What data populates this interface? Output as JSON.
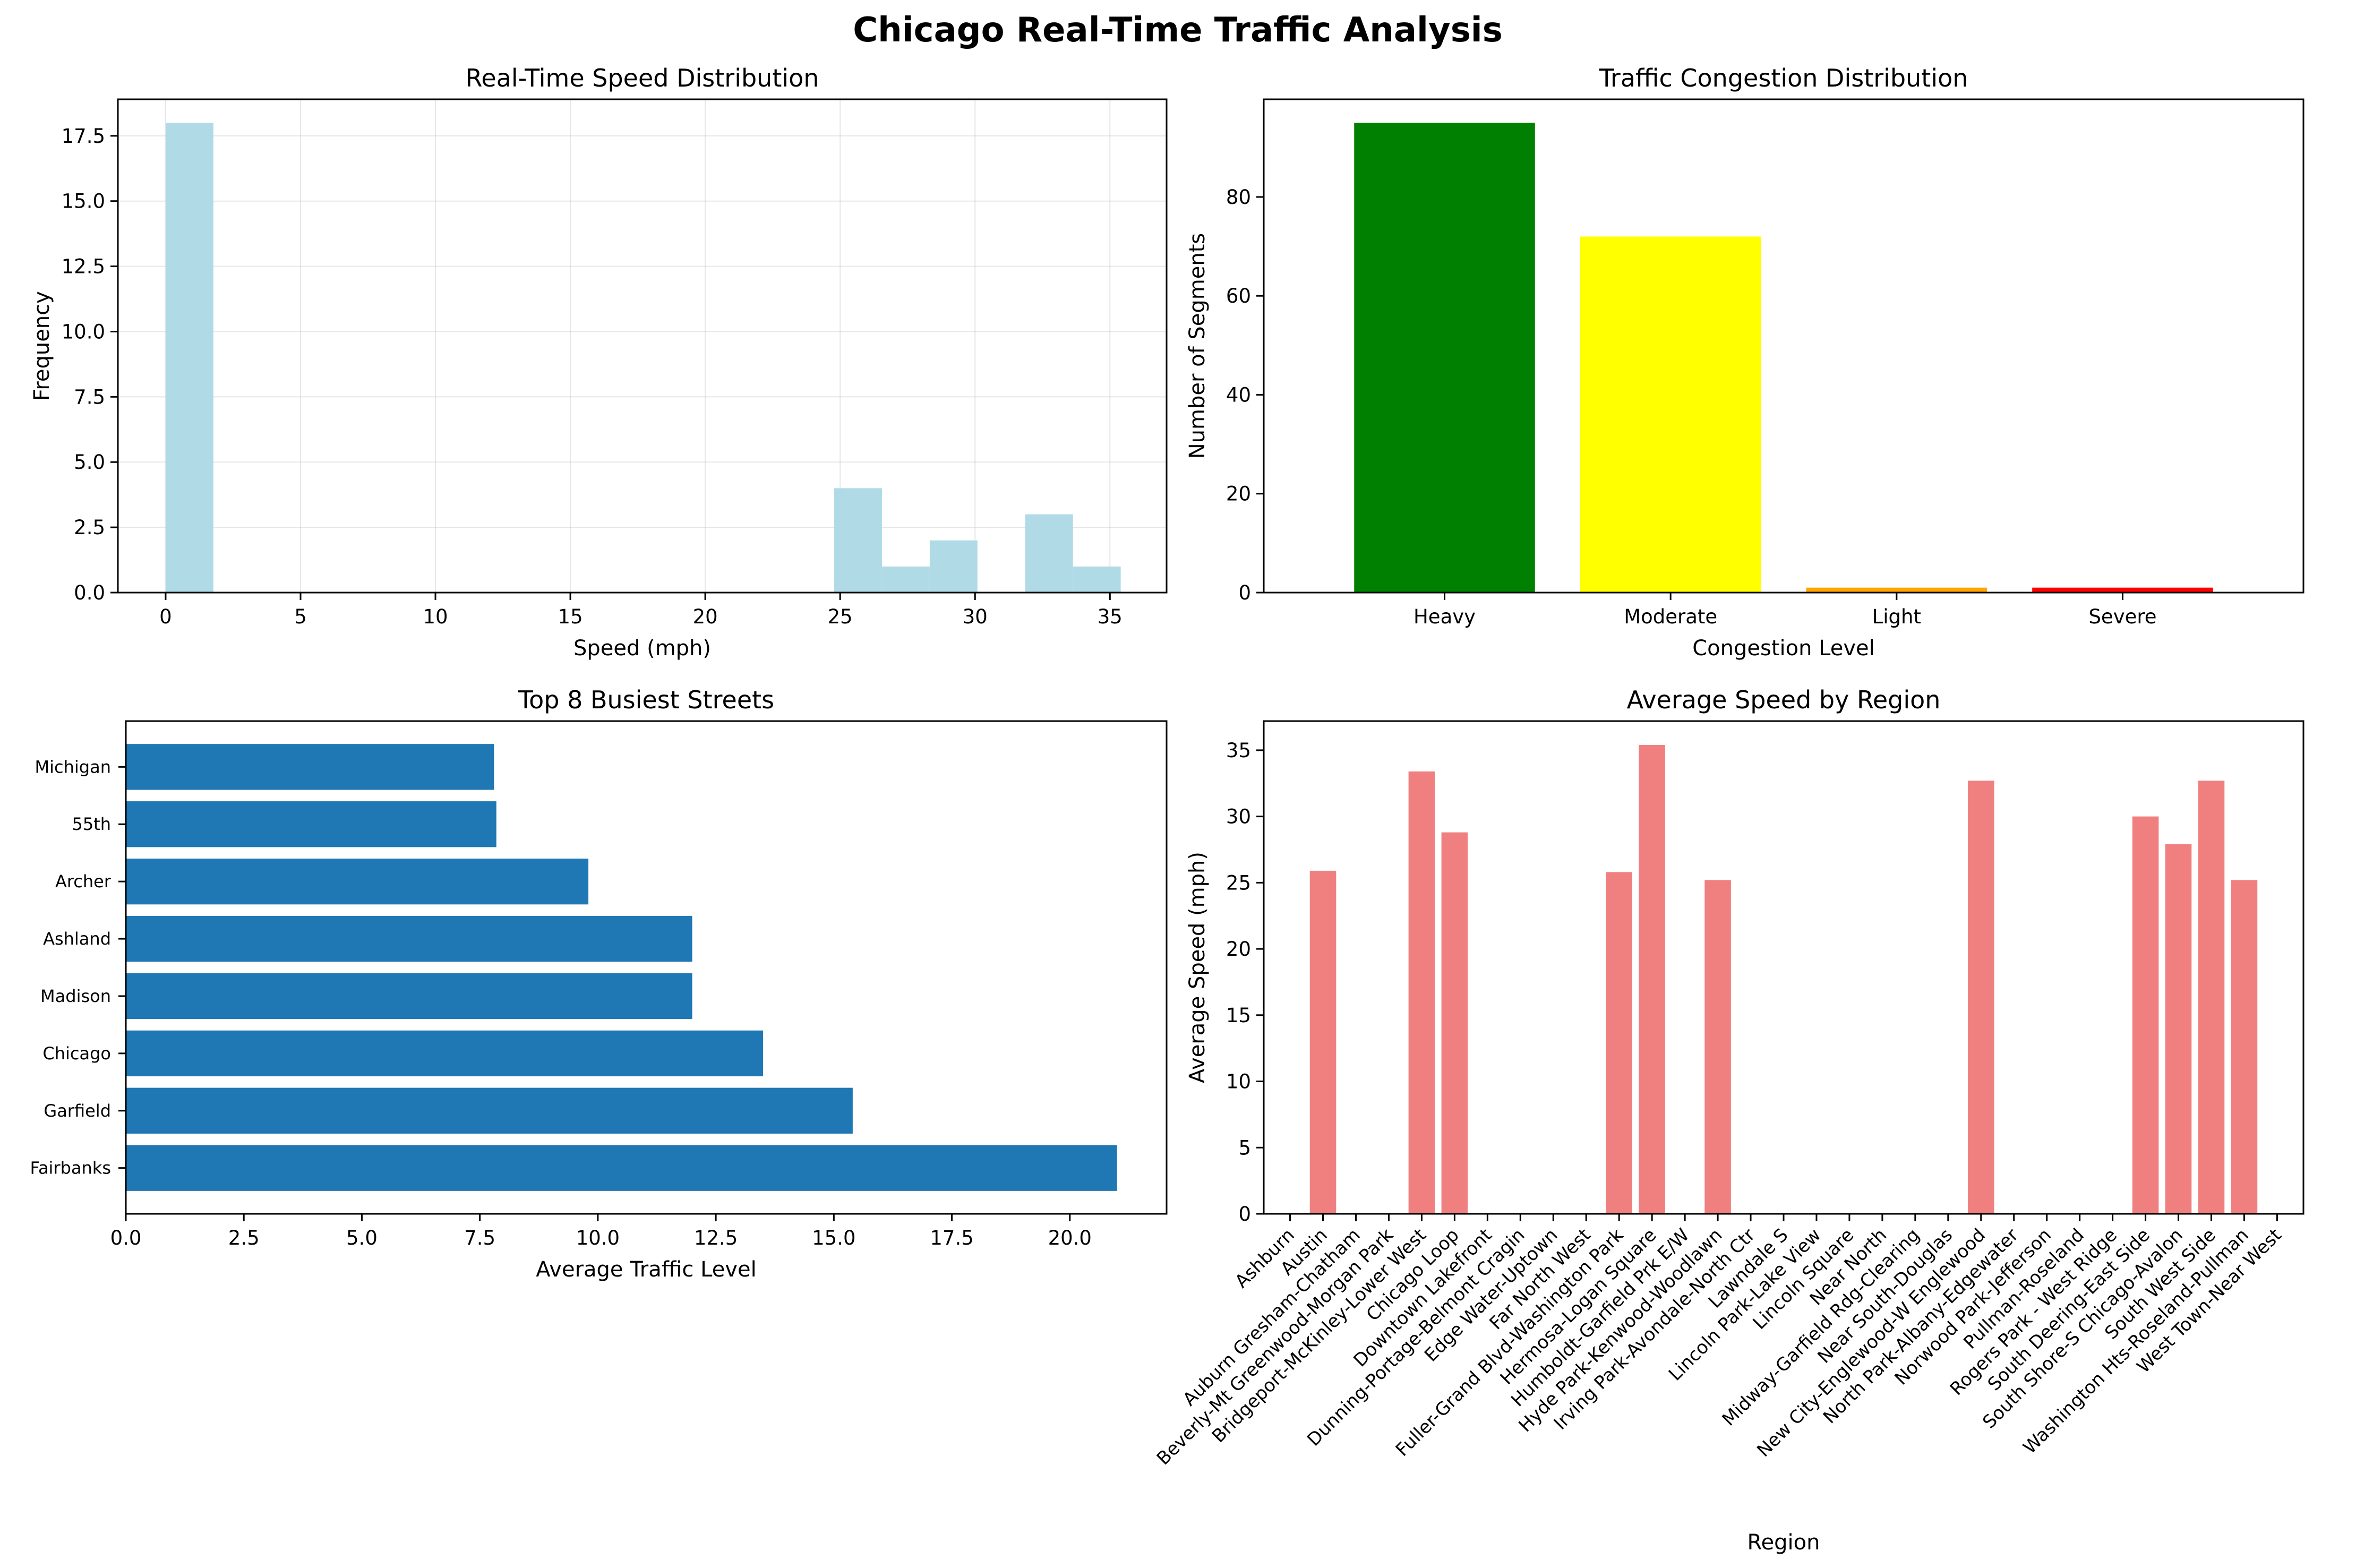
{
  "figure_title": "Chicago Real-Time Traffic Analysis",
  "colors": {
    "hist": "#add8e6",
    "heavy": "#008000",
    "moderate": "#ffff00",
    "light": "#ffa500",
    "severe": "#ff0000",
    "street_bar": "#1f77b4",
    "region_bar": "#f08080",
    "grid": "#b0b0b0"
  },
  "chart_data": [
    {
      "type": "bar",
      "subtype": "histogram",
      "title": "Real-Time Speed Distribution",
      "xlabel": "Speed (mph)",
      "ylabel": "Frequency",
      "xlim": [
        -1.77,
        37.1
      ],
      "ylim": [
        0,
        18.9
      ],
      "xticks": [
        0,
        5,
        10,
        15,
        20,
        25,
        30,
        35
      ],
      "yticks": [
        0.0,
        2.5,
        5.0,
        7.5,
        10.0,
        12.5,
        15.0,
        17.5
      ],
      "ytick_labels": [
        "0.0",
        "2.5",
        "5.0",
        "7.5",
        "10.0",
        "12.5",
        "15.0",
        "17.5"
      ],
      "grid": true,
      "bins": [
        {
          "x0": 0.0,
          "x1": 1.77,
          "count": 18
        },
        {
          "x0": 24.78,
          "x1": 26.55,
          "count": 4
        },
        {
          "x0": 26.55,
          "x1": 28.32,
          "count": 1
        },
        {
          "x0": 28.32,
          "x1": 30.09,
          "count": 2
        },
        {
          "x0": 31.86,
          "x1": 33.63,
          "count": 3
        },
        {
          "x0": 33.63,
          "x1": 35.4,
          "count": 1
        }
      ]
    },
    {
      "type": "bar",
      "title": "Traffic Congestion Distribution",
      "xlabel": "Congestion Level",
      "ylabel": "Number of Segments",
      "categories": [
        "Heavy",
        "Moderate",
        "Light",
        "Severe"
      ],
      "values": [
        95,
        72,
        1,
        1
      ],
      "ylim": [
        0,
        99.75
      ],
      "yticks": [
        0,
        20,
        40,
        60,
        80
      ],
      "grid": false
    },
    {
      "type": "bar",
      "orientation": "horizontal",
      "title": "Top 8 Busiest Streets",
      "xlabel": "Average Traffic Level",
      "ylabel": "",
      "categories": [
        "Fairbanks",
        "Garfield",
        "Chicago",
        "Madison",
        "Ashland",
        "Archer",
        "55th",
        "Michigan"
      ],
      "values": [
        21.0,
        15.4,
        13.5,
        12.0,
        12.0,
        9.8,
        7.85,
        7.8
      ],
      "xlim": [
        0,
        22.05
      ],
      "xticks": [
        0.0,
        2.5,
        5.0,
        7.5,
        10.0,
        12.5,
        15.0,
        17.5,
        20.0
      ],
      "xtick_labels": [
        "0.0",
        "2.5",
        "5.0",
        "7.5",
        "10.0",
        "12.5",
        "15.0",
        "17.5",
        "20.0"
      ],
      "grid": false
    },
    {
      "type": "bar",
      "title": "Average Speed by Region",
      "xlabel": "Region",
      "ylabel": "Average Speed (mph)",
      "categories": [
        "Ashburn",
        "Austin",
        "Auburn Gresham-Chatham",
        "Beverly-Mt Greenwood-Morgan Park",
        "Bridgeport-McKinley-Lower West",
        "Chicago Loop",
        "Downtown Lakefront",
        "Dunning-Portage-Belmont Cragin",
        "Edge Water-Uptown",
        "Far North West",
        "Fuller-Grand Blvd-Washington Park",
        "Hermosa-Logan Square",
        "Humboldt-Garfield Prk E/W",
        "Hyde Park-Kenwood-Woodlawn",
        "Irving Park-Avondale-North Ctr",
        "Lawndale S",
        "Lincoln Park-Lake View",
        "Lincoln Square",
        "Near North",
        "Midway-Garfield Rdg-Clearing",
        "Near South-Douglas",
        "New City-Englewood-W Englewood",
        "North Park-Albany-Edgewater",
        "Norwood Park-Jefferson",
        "Pullman-Roseland",
        "Rogers Park - West Ridge",
        "South Deering-East Side",
        "South Shore-S Chicago-Avalon",
        "South West Side",
        "Washington Hts-Roseland-Pullman",
        "West Town-Near West"
      ],
      "values": [
        0,
        25.9,
        0,
        0,
        33.4,
        28.8,
        0,
        0,
        0,
        0,
        25.8,
        35.4,
        0,
        25.2,
        0,
        0,
        0,
        0,
        0,
        0,
        0,
        32.7,
        0,
        0,
        0,
        0,
        30.0,
        27.9,
        32.7,
        25.2,
        0
      ],
      "ylim": [
        0,
        37.2
      ],
      "yticks": [
        0,
        5,
        10,
        15,
        20,
        25,
        30,
        35
      ],
      "grid": false
    }
  ]
}
